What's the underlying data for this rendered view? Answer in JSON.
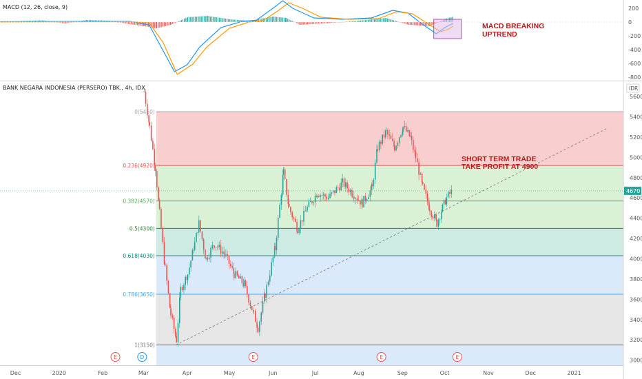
{
  "header": {
    "macd_label": "MACD (12, 26, close, 9)",
    "main_label": "BANK NEGARA INDONESIA (PERSERO) TBK., 4h, IDX",
    "currency": "IDR",
    "last_price": "4670"
  },
  "annotations": {
    "macd_note": [
      "MACD BREAKING",
      "UPTREND"
    ],
    "trade_note": [
      "SHORT TERM TRADE",
      "TAKE PROFIT AT 4900"
    ]
  },
  "colors": {
    "up": "#26a69a",
    "down": "#ef5350",
    "macd_line": "#2196f3",
    "signal_line": "#ff9800",
    "fib_top": "#f8c9c9",
    "fib_green": "#d6efd2",
    "fib_teal": "#c8e9e0",
    "fib_blue": "#d6e8fb",
    "fib_gray": "#e3e3e3",
    "note_text": "#b71c1c",
    "highlight_box": "#e1bee7"
  },
  "chart_data": [
    {
      "type": "line",
      "title": "MACD (12, 26, close, 9)",
      "yticks": [
        200,
        0,
        -200,
        -400,
        -600,
        -800
      ],
      "ylim": [
        -840,
        260
      ],
      "series": [
        {
          "values_x": [
            "2019-11-20",
            "2020-02-20",
            "2020-03-05",
            "2020-03-15",
            "2020-03-23",
            "2020-04-01",
            "2020-04-10",
            "2020-04-25",
            "2020-05-10",
            "2020-05-20",
            "2020-06-01",
            "2020-06-08",
            "2020-06-15",
            "2020-06-30",
            "2020-07-20",
            "2020-08-10",
            "2020-08-25",
            "2020-09-05",
            "2020-09-15",
            "2020-09-25",
            "2020-10-01",
            "2020-10-07"
          ],
          "values": [
            5,
            10,
            -40,
            -420,
            -720,
            -620,
            -360,
            -80,
            10,
            25,
            200,
            310,
            200,
            60,
            40,
            60,
            170,
            130,
            -30,
            -170,
            -80,
            -20
          ]
        },
        {
          "values_x": [
            "2019-11-20",
            "2020-02-20",
            "2020-03-05",
            "2020-03-15",
            "2020-03-25",
            "2020-04-05",
            "2020-04-15",
            "2020-05-01",
            "2020-05-15",
            "2020-05-25",
            "2020-06-05",
            "2020-06-12",
            "2020-06-22",
            "2020-07-05",
            "2020-07-25",
            "2020-08-15",
            "2020-08-28",
            "2020-09-08",
            "2020-09-18",
            "2020-09-28",
            "2020-10-03",
            "2020-10-07"
          ],
          "values": [
            0,
            5,
            -10,
            -300,
            -760,
            -610,
            -360,
            -90,
            0,
            20,
            170,
            280,
            200,
            70,
            40,
            50,
            150,
            120,
            -10,
            -140,
            -110,
            -60
          ]
        }
      ],
      "histogram": [
        {
          "date": "2019-12-05",
          "value": 15
        },
        {
          "date": "2019-12-20",
          "value": 25
        },
        {
          "date": "2020-01-05",
          "value": -20
        },
        {
          "date": "2020-01-20",
          "value": 30
        },
        {
          "date": "2020-02-05",
          "value": 20
        },
        {
          "date": "2020-02-20",
          "value": -30
        },
        {
          "date": "2020-03-01",
          "value": -60
        },
        {
          "date": "2020-03-10",
          "value": -90
        },
        {
          "date": "2020-03-20",
          "value": -40
        },
        {
          "date": "2020-04-01",
          "value": 70
        },
        {
          "date": "2020-04-15",
          "value": 90
        },
        {
          "date": "2020-05-01",
          "value": 40
        },
        {
          "date": "2020-05-15",
          "value": 20
        },
        {
          "date": "2020-06-01",
          "value": 80
        },
        {
          "date": "2020-06-10",
          "value": 60
        },
        {
          "date": "2020-06-20",
          "value": -40
        },
        {
          "date": "2020-07-10",
          "value": -15
        },
        {
          "date": "2020-08-01",
          "value": 20
        },
        {
          "date": "2020-08-20",
          "value": 60
        },
        {
          "date": "2020-09-05",
          "value": -40
        },
        {
          "date": "2020-09-20",
          "value": -60
        },
        {
          "date": "2020-10-02",
          "value": 50
        },
        {
          "date": "2020-10-07",
          "value": 80
        }
      ]
    },
    {
      "type": "candlestick",
      "title": "BANK NEGARA INDONESIA (PERSERO) TBK., 4h, IDX",
      "ylabel": "IDR",
      "ylim": [
        2950,
        5750
      ],
      "yticks": [
        3000,
        3200,
        3400,
        3600,
        3800,
        4000,
        4200,
        4400,
        4600,
        4800,
        5000,
        5200,
        5400,
        5600
      ],
      "xticks": [
        {
          "label": "Dec",
          "date": "2019-12-01"
        },
        {
          "label": "2020",
          "date": "2020-01-01"
        },
        {
          "label": "Feb",
          "date": "2020-02-01"
        },
        {
          "label": "Mar",
          "date": "2020-03-01"
        },
        {
          "label": "Apr",
          "date": "2020-04-01"
        },
        {
          "label": "May",
          "date": "2020-05-01"
        },
        {
          "label": "Jun",
          "date": "2020-06-01"
        },
        {
          "label": "Jul",
          "date": "2020-07-01"
        },
        {
          "label": "Aug",
          "date": "2020-08-01"
        },
        {
          "label": "Sep",
          "date": "2020-09-01"
        },
        {
          "label": "Oct",
          "date": "2020-10-01"
        },
        {
          "label": "Nov",
          "date": "2020-11-01"
        },
        {
          "label": "Dec",
          "date": "2020-12-01"
        },
        {
          "label": "2021",
          "date": "2021-01-01"
        }
      ],
      "events": [
        {
          "label": "E",
          "date": "2020-02-10",
          "color": "#ef5350"
        },
        {
          "label": "D",
          "date": "2020-02-29",
          "color": "#2196f3"
        },
        {
          "label": "E",
          "date": "2020-05-18",
          "color": "#ef5350"
        },
        {
          "label": "E",
          "date": "2020-08-17",
          "color": "#ef5350"
        },
        {
          "label": "E",
          "date": "2020-10-10",
          "color": "#ef5350"
        }
      ],
      "fibonacci": [
        {
          "label": "0(5450)",
          "price": 5450,
          "color": "#9e9e9e"
        },
        {
          "label": "0.236(4920)",
          "price": 4920,
          "color": "#ef5350"
        },
        {
          "label": "0.382(4570)",
          "price": 4570,
          "color": "#4caf50"
        },
        {
          "label": "0.5(4300)",
          "price": 4300,
          "color": "#2e7d32"
        },
        {
          "label": "0.618(4030)",
          "price": 4030,
          "color": "#00897b"
        },
        {
          "label": "0.786(3650)",
          "price": 3650,
          "color": "#42a5f5"
        },
        {
          "label": "1(3150)",
          "price": 3150,
          "color": "#757575"
        }
      ],
      "trendline": {
        "from": {
          "date": "2020-03-24",
          "price": 3150
        },
        "to": {
          "date": "2021-01-25",
          "price": 5290
        }
      },
      "last_price": 4670,
      "close_path": [
        {
          "date": "2020-03-01",
          "price": 5650
        },
        {
          "date": "2020-03-05",
          "price": 5300
        },
        {
          "date": "2020-03-09",
          "price": 4900
        },
        {
          "date": "2020-03-12",
          "price": 4450
        },
        {
          "date": "2020-03-16",
          "price": 3900
        },
        {
          "date": "2020-03-20",
          "price": 3450
        },
        {
          "date": "2020-03-24",
          "price": 3200
        },
        {
          "date": "2020-03-27",
          "price": 3700
        },
        {
          "date": "2020-04-01",
          "price": 3850
        },
        {
          "date": "2020-04-06",
          "price": 4150
        },
        {
          "date": "2020-04-09",
          "price": 4350
        },
        {
          "date": "2020-04-14",
          "price": 4000
        },
        {
          "date": "2020-04-20",
          "price": 4150
        },
        {
          "date": "2020-04-27",
          "price": 4050
        },
        {
          "date": "2020-05-04",
          "price": 3850
        },
        {
          "date": "2020-05-11",
          "price": 3750
        },
        {
          "date": "2020-05-18",
          "price": 3450
        },
        {
          "date": "2020-05-21",
          "price": 3320
        },
        {
          "date": "2020-05-26",
          "price": 3650
        },
        {
          "date": "2020-06-02",
          "price": 4100
        },
        {
          "date": "2020-06-08",
          "price": 4850
        },
        {
          "date": "2020-06-12",
          "price": 4500
        },
        {
          "date": "2020-06-18",
          "price": 4300
        },
        {
          "date": "2020-06-25",
          "price": 4500
        },
        {
          "date": "2020-07-02",
          "price": 4650
        },
        {
          "date": "2020-07-10",
          "price": 4600
        },
        {
          "date": "2020-07-20",
          "price": 4750
        },
        {
          "date": "2020-07-27",
          "price": 4650
        },
        {
          "date": "2020-08-03",
          "price": 4550
        },
        {
          "date": "2020-08-10",
          "price": 4700
        },
        {
          "date": "2020-08-14",
          "price": 5100
        },
        {
          "date": "2020-08-20",
          "price": 5250
        },
        {
          "date": "2020-08-26",
          "price": 5100
        },
        {
          "date": "2020-09-01",
          "price": 5300
        },
        {
          "date": "2020-09-06",
          "price": 5200
        },
        {
          "date": "2020-09-10",
          "price": 5000
        },
        {
          "date": "2020-09-15",
          "price": 4700
        },
        {
          "date": "2020-09-20",
          "price": 4500
        },
        {
          "date": "2020-09-25",
          "price": 4350
        },
        {
          "date": "2020-09-29",
          "price": 4500
        },
        {
          "date": "2020-10-02",
          "price": 4600
        },
        {
          "date": "2020-10-06",
          "price": 4670
        }
      ]
    }
  ]
}
